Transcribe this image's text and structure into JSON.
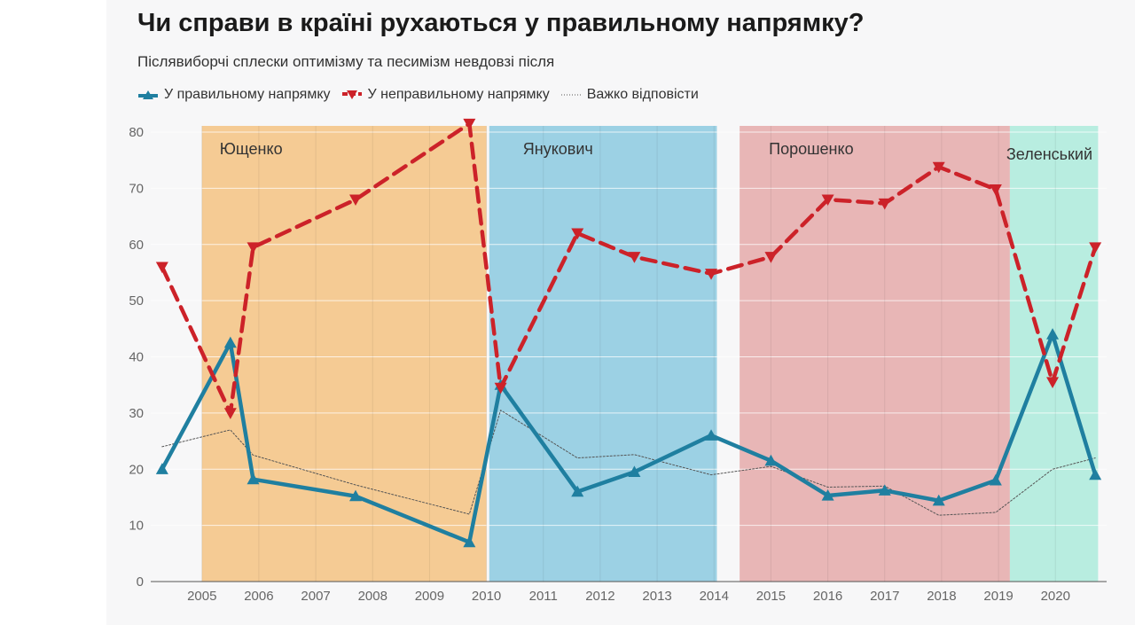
{
  "title": "Чи справи в країні рухаються у правильному напрямку?",
  "subtitle": "Післявиборчі сплески оптимізму та песимізм невдовзі після",
  "legend": [
    {
      "label": "У правильному напрямку",
      "color": "#1f7fa0",
      "style": "solid",
      "marker": "triangle-up"
    },
    {
      "label": "У неправильному напрямку",
      "color": "#cc2229",
      "style": "dashed",
      "marker": "triangle-down"
    },
    {
      "label": "Важко відповісти",
      "color": "#555555",
      "style": "dotted",
      "marker": "none"
    }
  ],
  "chart_data": {
    "type": "line",
    "xlim": [
      2004.1,
      2020.9
    ],
    "ylim": [
      0,
      80
    ],
    "x_ticks": [
      "2005",
      "2006",
      "2007",
      "2008",
      "2009",
      "2010",
      "2011",
      "2012",
      "2013",
      "2014",
      "2015",
      "2016",
      "2017",
      "2018",
      "2019",
      "2020"
    ],
    "y_ticks": [
      "0",
      "10",
      "20",
      "30",
      "40",
      "50",
      "60",
      "70",
      "80"
    ],
    "grid": true,
    "legend_position": "top-left",
    "eras": [
      {
        "label": "Ющенко",
        "start": 2005.0,
        "end": 2010.0,
        "color": "#f5cb94"
      },
      {
        "label": "Янукович",
        "start": 2010.05,
        "end": 2014.05,
        "color": "#9cd1e4"
      },
      {
        "label": "Порошенко",
        "start": 2014.45,
        "end": 2019.2,
        "color": "#e8b6b6"
      },
      {
        "label": "Зеленський",
        "start": 2019.2,
        "end": 2020.75,
        "color": "#b8ede0"
      }
    ],
    "series": [
      {
        "name": "У правильному напрямку",
        "color": "#1f7fa0",
        "x": [
          2004.3,
          2005.5,
          2005.9,
          2007.7,
          2009.7,
          2010.25,
          2011.6,
          2012.6,
          2013.95,
          2015.0,
          2016.0,
          2017.0,
          2017.95,
          2018.95,
          2019.95,
          2020.7
        ],
        "values": [
          20,
          42.5,
          18.2,
          15.2,
          7,
          35,
          16,
          19.5,
          26,
          21.5,
          15.3,
          16.2,
          14.4,
          18,
          44,
          19
        ]
      },
      {
        "name": "У неправильному напрямку",
        "color": "#cc2229",
        "x": [
          2004.3,
          2005.5,
          2005.9,
          2007.7,
          2009.7,
          2010.25,
          2011.6,
          2012.6,
          2013.95,
          2015.0,
          2016.0,
          2017.0,
          2017.95,
          2018.95,
          2019.95,
          2020.7
        ],
        "values": [
          56,
          30,
          59.5,
          68,
          81.5,
          34.5,
          62,
          57.8,
          54.8,
          57.8,
          68,
          67.3,
          73.8,
          69.8,
          35.5,
          59.5
        ]
      },
      {
        "name": "Важко відповісти",
        "color": "#555555",
        "x": [
          2004.3,
          2005.5,
          2005.9,
          2007.7,
          2009.7,
          2010.25,
          2011.6,
          2012.6,
          2013.95,
          2015.0,
          2016.0,
          2017.0,
          2017.95,
          2018.95,
          2019.95,
          2020.7
        ],
        "values": [
          24,
          27,
          22.5,
          17.2,
          12,
          30.5,
          22,
          22.6,
          19,
          20.5,
          16.8,
          17,
          11.8,
          12.3,
          20,
          22
        ]
      }
    ]
  }
}
